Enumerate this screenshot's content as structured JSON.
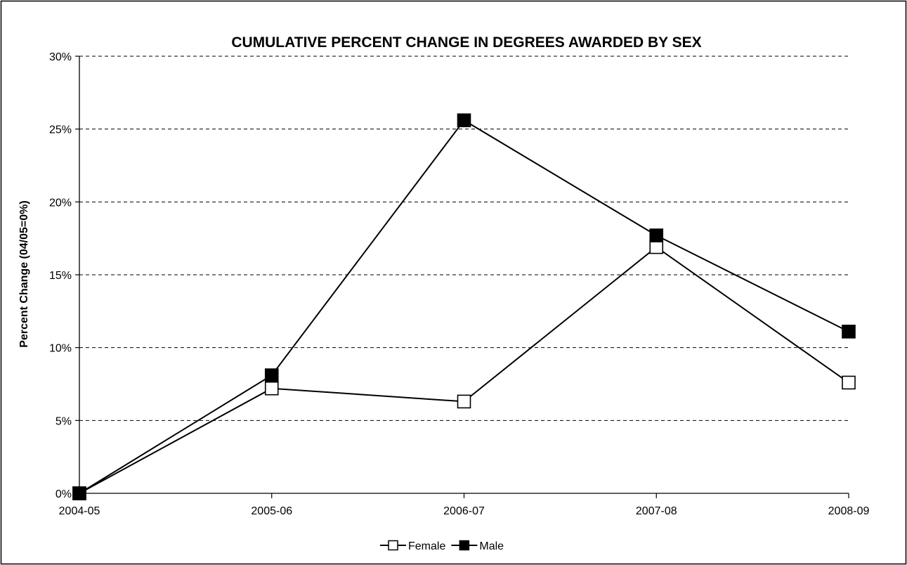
{
  "chart_data": {
    "type": "line",
    "title": "CUMULATIVE PERCENT CHANGE IN DEGREES AWARDED BY SEX",
    "xlabel": "",
    "ylabel": "Percent Change (04/05=0%)",
    "categories": [
      "2004-05",
      "2005-06",
      "2006-07",
      "2007-08",
      "2008-09"
    ],
    "ylim": [
      0,
      30
    ],
    "yticks": [
      "0%",
      "5%",
      "10%",
      "15%",
      "20%",
      "25%",
      "30%"
    ],
    "grid": true,
    "legend_position": "bottom",
    "series": [
      {
        "name": "Female",
        "values": [
          0,
          7.2,
          6.3,
          16.9,
          7.6
        ],
        "marker": "open-square",
        "color": "#000000"
      },
      {
        "name": "Male",
        "values": [
          0,
          8.1,
          25.6,
          17.7,
          11.1
        ],
        "marker": "filled-square",
        "color": "#000000"
      }
    ]
  }
}
